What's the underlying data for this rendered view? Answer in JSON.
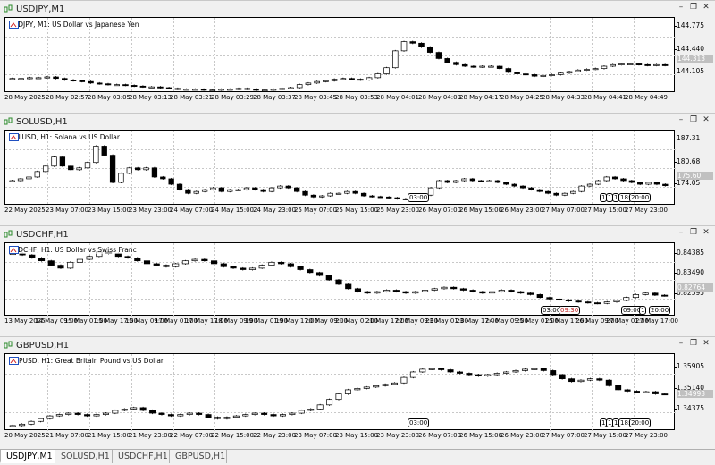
{
  "tabs": [
    "USDJPY,M1",
    "SOLUSD,H1",
    "USDCHF,H1",
    "GBPUSD,H1"
  ],
  "windows": [
    {
      "title": "USDJPY,M1",
      "header": "USDJPY, M1:  US Dollar vs Japanese Yen",
      "ticks": [
        "144.775",
        "144.440",
        "144.105"
      ],
      "last": "144.313",
      "times": [
        "28 May 2025",
        "28 May 02:57",
        "28 May 03:05",
        "28 May 03:13",
        "28 May 03:21",
        "28 May 03:29",
        "28 May 03:37",
        "28 May 03:45",
        "28 May 03:53",
        "28 May 04:01",
        "28 May 04:09",
        "28 May 04:17",
        "28 May 04:25",
        "28 May 04:33",
        "28 May 04:41",
        "28 May 04:49"
      ],
      "sessions": [],
      "chart_data": {
        "type": "candlestick",
        "ylim": [
          143.95,
          144.93
        ],
        "values": [
          144.14,
          144.14,
          144.15,
          144.15,
          144.16,
          144.14,
          144.12,
          144.11,
          144.1,
          144.08,
          144.07,
          144.06,
          144.06,
          144.05,
          144.04,
          144.03,
          144.03,
          144.02,
          144.01,
          144.0,
          144.0,
          144.0,
          143.99,
          143.99,
          144.0,
          144.0,
          144.01,
          144.0,
          143.99,
          143.99,
          144.0,
          144.01,
          144.02,
          144.06,
          144.08,
          144.1,
          144.11,
          144.13,
          144.14,
          144.13,
          144.12,
          144.15,
          144.2,
          144.28,
          144.5,
          144.62,
          144.6,
          144.55,
          144.48,
          144.4,
          144.35,
          144.32,
          144.3,
          144.29,
          144.3,
          144.3,
          144.27,
          144.22,
          144.2,
          144.19,
          144.17,
          144.18,
          144.19,
          144.21,
          144.23,
          144.25,
          144.26,
          144.27,
          144.3,
          144.32,
          144.33,
          144.33,
          144.32,
          144.31,
          144.32,
          144.31
        ]
      }
    },
    {
      "title": "SOLUSD,H1",
      "header": "SOLUSD, H1:  Solana vs US Dollar",
      "ticks": [
        "187.31",
        "180.68",
        "174.05"
      ],
      "last": "175.60",
      "times": [
        "22 May 2025",
        "23 May 07:00",
        "23 May 15:00",
        "23 May 23:00",
        "24 May 07:00",
        "24 May 15:00",
        "24 May 23:00",
        "25 May 07:00",
        "25 May 15:00",
        "25 May 23:00",
        "26 May 07:00",
        "26 May 15:00",
        "26 May 23:00",
        "27 May 07:00",
        "27 May 15:00",
        "27 May 23:00"
      ],
      "sessions": [
        "03:00",
        "1",
        "1",
        "1",
        "18:",
        "20:00"
      ],
      "chart_data": {
        "type": "candlestick",
        "ylim": [
          170.1,
          190.8
        ],
        "values": [
          177.0,
          177.5,
          178.0,
          179.5,
          181.0,
          183.5,
          181.0,
          180.0,
          180.5,
          182.0,
          186.5,
          184.0,
          176.5,
          179.0,
          180.5,
          180.0,
          180.5,
          178.0,
          177.5,
          176.0,
          174.5,
          173.5,
          174.0,
          174.5,
          175.0,
          174.0,
          174.5,
          174.5,
          175.0,
          174.5,
          174.0,
          175.0,
          175.5,
          175.0,
          174.0,
          173.0,
          172.5,
          172.8,
          173.5,
          173.5,
          174.0,
          173.5,
          172.8,
          172.6,
          172.5,
          172.3,
          172.0,
          171.9,
          172.0,
          173.0,
          175.0,
          177.0,
          176.5,
          177.0,
          177.5,
          177.0,
          176.8,
          177.0,
          176.5,
          176.0,
          175.5,
          175.0,
          174.5,
          174.0,
          173.5,
          173.0,
          173.5,
          174.0,
          175.5,
          176.0,
          177.0,
          178.0,
          177.5,
          177.0,
          176.5,
          176.0,
          176.5,
          176.0,
          175.6
        ]
      }
    },
    {
      "title": "USDCHF,H1",
      "header": "USDCHF, H1:  US Dollar vs Swiss Franc",
      "ticks": [
        "0.84385",
        "0.83490",
        "0.82595"
      ],
      "last": "0.82764",
      "times": [
        "13 May 2025",
        "14 May 09:00",
        "15 May 01:00",
        "15 May 17:00",
        "16 May 09:00",
        "17 May 01:00",
        "17 May 17:00",
        "18 May 09:00",
        "19 May 01:00",
        "19 May 17:00",
        "20 May 09:00",
        "21 May 01:00",
        "21 May 17:00",
        "22 May 09:00",
        "23 May 01:00",
        "23 May 17:00",
        "24 May 09:00",
        "25 May 01:00",
        "25 May 17:00",
        "26 May 09:00",
        "27 May 01:00",
        "27 May 17:00"
      ],
      "sessions": [
        "03:00",
        "09:30",
        "09:00",
        "1",
        "20:00"
      ],
      "chart_data": {
        "type": "candlestick",
        "ylim": [
          0.8205,
          0.8455
        ],
        "values": [
          0.842,
          0.8415,
          0.8405,
          0.8395,
          0.838,
          0.837,
          0.839,
          0.84,
          0.841,
          0.8425,
          0.842,
          0.841,
          0.8405,
          0.8395,
          0.8385,
          0.838,
          0.8375,
          0.8385,
          0.8395,
          0.84,
          0.8395,
          0.8385,
          0.8375,
          0.837,
          0.8365,
          0.837,
          0.838,
          0.839,
          0.8385,
          0.8375,
          0.8365,
          0.8355,
          0.8345,
          0.833,
          0.8315,
          0.83,
          0.829,
          0.8285,
          0.829,
          0.8295,
          0.829,
          0.8285,
          0.829,
          0.8295,
          0.83,
          0.8305,
          0.83,
          0.8295,
          0.829,
          0.8285,
          0.829,
          0.8295,
          0.829,
          0.8285,
          0.828,
          0.827,
          0.8265,
          0.8262,
          0.8258,
          0.8255,
          0.8252,
          0.825,
          0.8255,
          0.826,
          0.827,
          0.828,
          0.8285,
          0.8278,
          0.8276
        ]
      }
    },
    {
      "title": "GBPUSD,H1",
      "header": "GBPUSD, H1:  Great Britain Pound vs US Dollar",
      "ticks": [
        "1.35905",
        "1.35140",
        "1.34375"
      ],
      "last": "1.34993",
      "times": [
        "20 May 2025",
        "21 May 07:00",
        "21 May 15:00",
        "21 May 23:00",
        "22 May 07:00",
        "22 May 15:00",
        "22 May 23:00",
        "23 May 07:00",
        "23 May 15:00",
        "23 May 23:00",
        "26 May 07:00",
        "26 May 15:00",
        "26 May 23:00",
        "27 May 07:00",
        "27 May 15:00",
        "27 May 23:00"
      ],
      "sessions": [
        "03:00",
        "1",
        "1",
        "1",
        "18:",
        "20:00"
      ],
      "chart_data": {
        "type": "candlestick",
        "ylim": [
          1.3365,
          1.3645
        ],
        "values": [
          1.3385,
          1.339,
          1.34,
          1.341,
          1.342,
          1.3425,
          1.343,
          1.3425,
          1.342,
          1.3425,
          1.343,
          1.344,
          1.3445,
          1.345,
          1.344,
          1.343,
          1.3425,
          1.342,
          1.3425,
          1.343,
          1.3425,
          1.3415,
          1.341,
          1.3415,
          1.342,
          1.3425,
          1.343,
          1.3425,
          1.342,
          1.3425,
          1.343,
          1.344,
          1.3445,
          1.346,
          1.348,
          1.35,
          1.3515,
          1.352,
          1.3525,
          1.353,
          1.3535,
          1.354,
          1.356,
          1.358,
          1.359,
          1.3592,
          1.3588,
          1.358,
          1.3575,
          1.357,
          1.3565,
          1.357,
          1.3575,
          1.358,
          1.3585,
          1.359,
          1.3592,
          1.3585,
          1.357,
          1.3555,
          1.3545,
          1.355,
          1.3555,
          1.355,
          1.353,
          1.3515,
          1.351,
          1.3505,
          1.3508,
          1.35,
          1.3499
        ]
      }
    }
  ]
}
